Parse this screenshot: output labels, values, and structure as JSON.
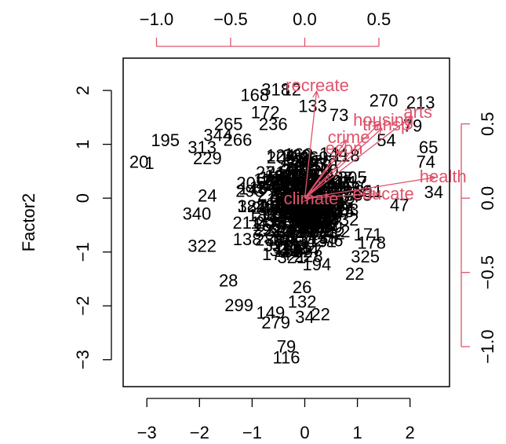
{
  "chart_data": {
    "type": "scatter",
    "title": "",
    "xlabel": "",
    "ylabel": "Factor2",
    "colors": {
      "observations": "#000000",
      "variables": "#DF536B",
      "frame": "#000000"
    },
    "scores_axes": {
      "x": {
        "range": [
          -3.45,
          2.75
        ],
        "ticks": [
          -3,
          -2,
          -1,
          0,
          1,
          2
        ],
        "tick_labels": [
          "−3",
          "−2",
          "−1",
          "0",
          "1",
          "2"
        ]
      },
      "y": {
        "range": [
          -3.5,
          2.6
        ],
        "ticks": [
          -3,
          -2,
          -1,
          0,
          1,
          2
        ],
        "tick_labels": [
          "−3",
          "−2",
          "−1",
          "0",
          "1",
          "2"
        ]
      }
    },
    "loadings_axes": {
      "x": {
        "ticks": [
          -1.0,
          -0.5,
          0.0,
          0.5
        ],
        "tick_labels": [
          "−1.0",
          "−0.5",
          "0.0",
          "0.5"
        ]
      },
      "y": {
        "ticks": [
          -1.0,
          -0.5,
          0.0,
          0.5
        ],
        "tick_labels": [
          "−1.0",
          "−0.5",
          "0.0",
          "0.5"
        ]
      }
    },
    "observations": [
      {
        "label": "318",
        "x": -0.55,
        "y": 2.02
      },
      {
        "label": "12",
        "x": -0.25,
        "y": 2.02
      },
      {
        "label": "168",
        "x": -0.95,
        "y": 1.92
      },
      {
        "label": "133",
        "x": 0.15,
        "y": 1.72
      },
      {
        "label": "270",
        "x": 1.5,
        "y": 1.82
      },
      {
        "label": "213",
        "x": 2.2,
        "y": 1.78
      },
      {
        "label": "172",
        "x": -0.75,
        "y": 1.6
      },
      {
        "label": "73",
        "x": 0.65,
        "y": 1.55
      },
      {
        "label": "195",
        "x": -2.65,
        "y": 1.08
      },
      {
        "label": "265",
        "x": -1.45,
        "y": 1.38
      },
      {
        "label": "236",
        "x": -0.6,
        "y": 1.38
      },
      {
        "label": "344",
        "x": -1.65,
        "y": 1.18
      },
      {
        "label": "313",
        "x": -1.95,
        "y": 0.95
      },
      {
        "label": "229",
        "x": -1.85,
        "y": 0.75
      },
      {
        "label": "20",
        "x": -3.15,
        "y": 0.68
      },
      {
        "label": "1",
        "x": -2.95,
        "y": 0.66
      },
      {
        "label": "79",
        "x": 2.05,
        "y": 1.35
      },
      {
        "label": "54",
        "x": 1.55,
        "y": 1.08
      },
      {
        "label": "65",
        "x": 2.35,
        "y": 0.95
      },
      {
        "label": "74",
        "x": 2.3,
        "y": 0.68
      },
      {
        "label": "34",
        "x": 2.45,
        "y": 0.12
      },
      {
        "label": "47",
        "x": 1.8,
        "y": -0.12
      },
      {
        "label": "24",
        "x": -1.85,
        "y": 0.05
      },
      {
        "label": "340",
        "x": -2.05,
        "y": -0.28
      },
      {
        "label": "322",
        "x": -1.95,
        "y": -0.88
      },
      {
        "label": "325",
        "x": 1.15,
        "y": -1.08
      },
      {
        "label": "22",
        "x": 0.95,
        "y": -1.4
      },
      {
        "label": "28",
        "x": -1.45,
        "y": -1.52
      },
      {
        "label": "26",
        "x": -0.05,
        "y": -1.65
      },
      {
        "label": "299",
        "x": -1.25,
        "y": -1.98
      },
      {
        "label": "132",
        "x": -0.05,
        "y": -1.92
      },
      {
        "label": "149",
        "x": -0.65,
        "y": -2.12
      },
      {
        "label": "22",
        "x": 0.3,
        "y": -2.15
      },
      {
        "label": "279",
        "x": -0.55,
        "y": -2.3
      },
      {
        "label": "34",
        "x": 0.0,
        "y": -2.2
      },
      {
        "label": "79",
        "x": -0.35,
        "y": -2.75
      },
      {
        "label": "116",
        "x": -0.35,
        "y": -2.95
      }
    ],
    "variables": [
      {
        "name": "recreate",
        "x": 0.08,
        "y": 0.72
      },
      {
        "name": "arts",
        "x": 0.72,
        "y": 0.55
      },
      {
        "name": "housing",
        "x": 0.5,
        "y": 0.5
      },
      {
        "name": "transp",
        "x": 0.52,
        "y": 0.47
      },
      {
        "name": "crime",
        "x": 0.28,
        "y": 0.39
      },
      {
        "name": "econ",
        "x": 0.25,
        "y": 0.32
      },
      {
        "name": "health",
        "x": 0.88,
        "y": 0.14
      },
      {
        "name": "educate",
        "x": 0.5,
        "y": 0.03
      },
      {
        "name": "climate",
        "x": 0.04,
        "y": 0.0
      }
    ]
  }
}
